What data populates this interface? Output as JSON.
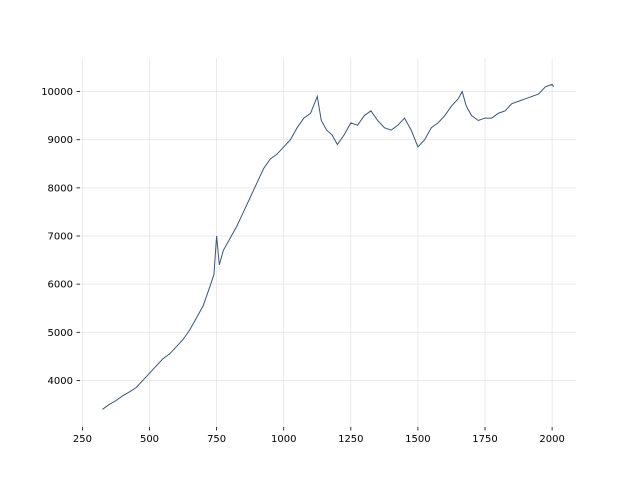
{
  "chart_data": {
    "type": "line",
    "x": [
      325,
      350,
      375,
      400,
      425,
      450,
      475,
      500,
      525,
      550,
      575,
      600,
      625,
      650,
      675,
      700,
      725,
      740,
      750,
      760,
      775,
      800,
      825,
      850,
      875,
      900,
      925,
      950,
      975,
      1000,
      1025,
      1050,
      1075,
      1100,
      1125,
      1140,
      1160,
      1180,
      1200,
      1225,
      1250,
      1275,
      1300,
      1325,
      1350,
      1375,
      1400,
      1425,
      1450,
      1475,
      1500,
      1525,
      1550,
      1575,
      1600,
      1625,
      1650,
      1665,
      1680,
      1700,
      1725,
      1750,
      1775,
      1800,
      1825,
      1850,
      1875,
      1900,
      1925,
      1950,
      1975,
      2000,
      2005
    ],
    "series": [
      {
        "color": "#3a5677",
        "values": [
          3400,
          3500,
          3580,
          3680,
          3760,
          3850,
          4000,
          4150,
          4300,
          4450,
          4550,
          4700,
          4850,
          5050,
          5300,
          5550,
          5950,
          6200,
          7000,
          6400,
          6700,
          6950,
          7200,
          7500,
          7800,
          8100,
          8400,
          8600,
          8700,
          8850,
          9000,
          9250,
          9450,
          9550,
          9900,
          9400,
          9200,
          9100,
          8900,
          9100,
          9350,
          9300,
          9500,
          9600,
          9400,
          9250,
          9200,
          9300,
          9450,
          9200,
          8850,
          9000,
          9250,
          9350,
          9500,
          9700,
          9850,
          10000,
          9700,
          9500,
          9400,
          9450,
          9450,
          9550,
          9600,
          9750,
          9800,
          9850,
          9900,
          9950,
          10100,
          10150,
          10100
        ]
      }
    ],
    "xlim": [
      241,
      2089
    ],
    "ylim": [
      3032,
      10698
    ],
    "xticks": [
      250,
      500,
      750,
      1000,
      1250,
      1500,
      1750,
      2000
    ],
    "yticks": [
      4000,
      5000,
      6000,
      7000,
      8000,
      9000,
      10000
    ],
    "grid": true
  }
}
